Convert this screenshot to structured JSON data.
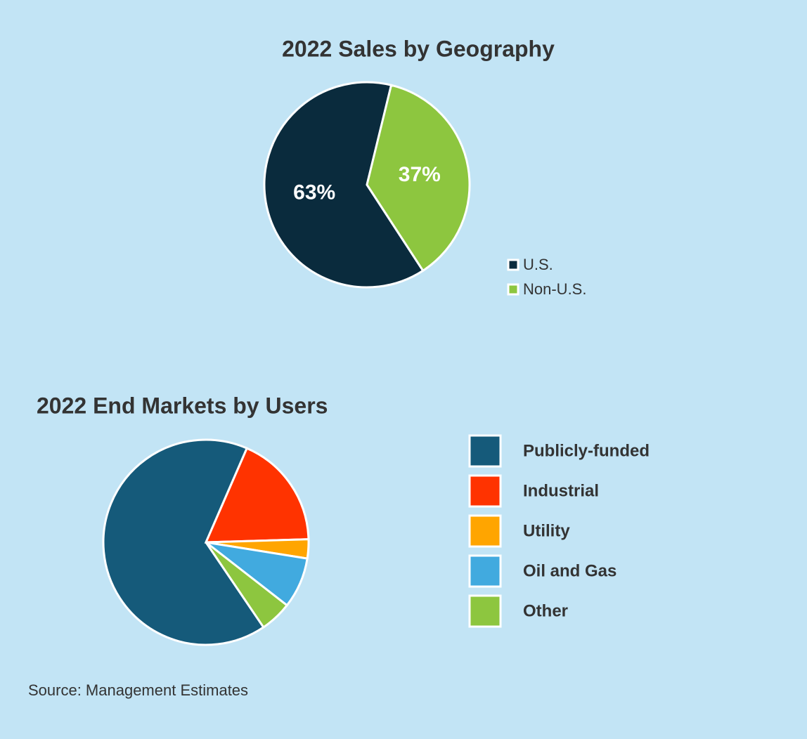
{
  "chart_data": [
    {
      "type": "pie",
      "title": "2022 Sales by Geography",
      "categories": [
        "U.S.",
        "Non-U.S."
      ],
      "values": [
        63,
        37
      ],
      "value_labels": [
        "63%",
        "37%"
      ],
      "colors": [
        "#0a2b3d",
        "#8dc63f"
      ],
      "legend": "bottom-right"
    },
    {
      "type": "pie",
      "title": "2022 End Markets by Users",
      "categories": [
        "Publicly-funded",
        "Industrial",
        "Utility",
        "Oil and Gas",
        "Other"
      ],
      "values": [
        66,
        18,
        3,
        8,
        5
      ],
      "colors": [
        "#155a7a",
        "#ff3300",
        "#ffa500",
        "#41aadf",
        "#8dc63f"
      ],
      "legend": "right"
    }
  ],
  "source": "Source: Management Estimates"
}
